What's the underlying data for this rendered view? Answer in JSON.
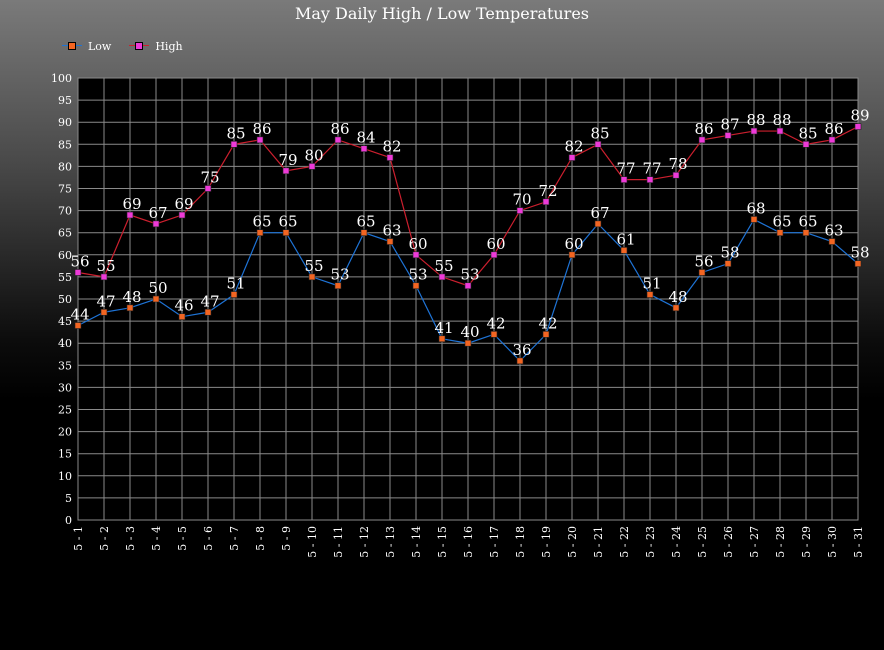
{
  "chart_data": {
    "type": "line",
    "title": "May Daily High / Low Temperatures",
    "xlabel": "",
    "ylabel": "",
    "ylim": [
      0,
      100
    ],
    "ytick_step": 5,
    "grid": true,
    "legend_position": "top-left",
    "categories": [
      "5 - 1",
      "5 - 2",
      "5 - 3",
      "5 - 4",
      "5 - 5",
      "5 - 6",
      "5 - 7",
      "5 - 8",
      "5 - 9",
      "5 - 10",
      "5 - 11",
      "5 - 12",
      "5 - 13",
      "5 - 14",
      "5 - 15",
      "5 - 16",
      "5 - 17",
      "5 - 18",
      "5 - 19",
      "5 - 20",
      "5 - 21",
      "5 - 22",
      "5 - 23",
      "5 - 24",
      "5 - 25",
      "5 - 26",
      "5 - 27",
      "5 - 28",
      "5 - 29",
      "5 - 30",
      "5 - 31"
    ],
    "series": [
      {
        "name": "Low",
        "line_color": "#1e73d6",
        "marker_color": "#f26522",
        "values": [
          44,
          47,
          48,
          50,
          46,
          47,
          51,
          65,
          65,
          55,
          53,
          65,
          63,
          53,
          41,
          40,
          42,
          36,
          42,
          60,
          67,
          61,
          51,
          48,
          56,
          58,
          68,
          65,
          65,
          63,
          58
        ]
      },
      {
        "name": "High",
        "line_color": "#cc1f2e",
        "marker_color": "#ee3ad8",
        "values": [
          56,
          55,
          69,
          67,
          69,
          75,
          85,
          86,
          79,
          80,
          86,
          84,
          82,
          60,
          55,
          53,
          60,
          70,
          72,
          82,
          85,
          77,
          77,
          78,
          86,
          87,
          88,
          88,
          85,
          86,
          89
        ]
      }
    ]
  },
  "colors": {
    "plot_background": "#000000",
    "grid": "#8a8a8a",
    "axis_text": "#ffffff",
    "label_text": "#ffffff"
  }
}
